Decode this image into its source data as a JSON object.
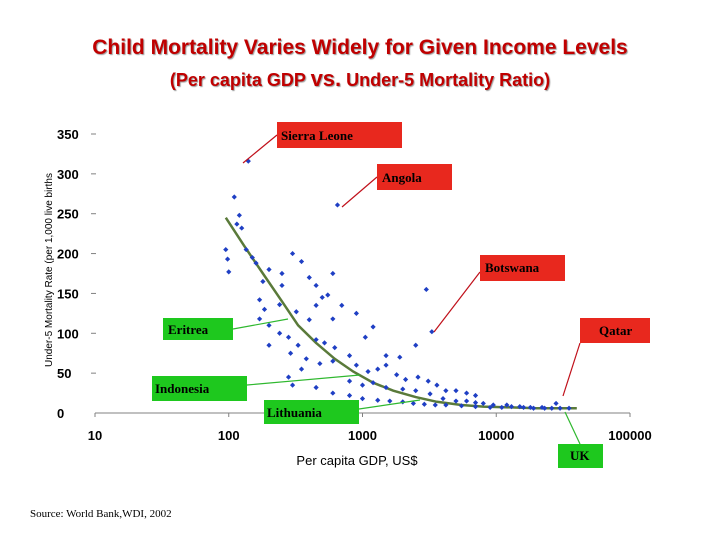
{
  "title": "Child Mortality Varies Widely for Given Income Levels",
  "subtitle_pre": "(Per capita GDP ",
  "subtitle_vs": "vs.",
  "subtitle_post": " Under-5 Mortality Ratio)",
  "source": "Source: World Bank,WDI, 2002",
  "chart_data": {
    "type": "scatter",
    "xscale": "log",
    "xlabel": "Per capita GDP, US$",
    "ylabel": "Under-5 Mortality Rate (per 1,000 live births",
    "xlim": [
      10,
      100000
    ],
    "ylim": [
      0,
      350
    ],
    "xticks": [
      "10",
      "100",
      "1000",
      "10000",
      "100000"
    ],
    "yticks": [
      "0",
      "50",
      "100",
      "150",
      "200",
      "250",
      "300",
      "350"
    ],
    "marker_color": "#1f3fc4",
    "trend_color": "#5a7a3a",
    "points": [
      [
        140,
        316
      ],
      [
        650,
        261
      ],
      [
        110,
        271
      ],
      [
        115,
        237
      ],
      [
        120,
        248
      ],
      [
        125,
        232
      ],
      [
        95,
        205
      ],
      [
        98,
        193
      ],
      [
        100,
        177
      ],
      [
        135,
        205
      ],
      [
        150,
        195
      ],
      [
        160,
        188
      ],
      [
        180,
        165
      ],
      [
        200,
        180
      ],
      [
        250,
        175
      ],
      [
        300,
        200
      ],
      [
        350,
        190
      ],
      [
        400,
        170
      ],
      [
        600,
        175
      ],
      [
        250,
        160
      ],
      [
        450,
        160
      ],
      [
        500,
        145
      ],
      [
        550,
        148
      ],
      [
        700,
        135
      ],
      [
        170,
        142
      ],
      [
        185,
        130
      ],
      [
        240,
        136
      ],
      [
        320,
        127
      ],
      [
        400,
        117
      ],
      [
        450,
        135
      ],
      [
        600,
        118
      ],
      [
        900,
        125
      ],
      [
        1200,
        108
      ],
      [
        3000,
        155
      ],
      [
        3300,
        102
      ],
      [
        95,
        115
      ],
      [
        100,
        110
      ],
      [
        170,
        118
      ],
      [
        200,
        110
      ],
      [
        240,
        100
      ],
      [
        280,
        95
      ],
      [
        330,
        85
      ],
      [
        450,
        92
      ],
      [
        520,
        88
      ],
      [
        620,
        82
      ],
      [
        800,
        72
      ],
      [
        1050,
        95
      ],
      [
        1500,
        72
      ],
      [
        1900,
        70
      ],
      [
        2500,
        85
      ],
      [
        200,
        85
      ],
      [
        290,
        75
      ],
      [
        380,
        68
      ],
      [
        480,
        62
      ],
      [
        600,
        65
      ],
      [
        900,
        60
      ],
      [
        1100,
        52
      ],
      [
        1300,
        55
      ],
      [
        1500,
        60
      ],
      [
        1800,
        48
      ],
      [
        2100,
        42
      ],
      [
        2600,
        45
      ],
      [
        3100,
        40
      ],
      [
        3600,
        35
      ],
      [
        4200,
        28
      ],
      [
        5000,
        28
      ],
      [
        6000,
        25
      ],
      [
        7000,
        22
      ],
      [
        800,
        40
      ],
      [
        1000,
        35
      ],
      [
        1200,
        38
      ],
      [
        1500,
        32
      ],
      [
        2000,
        30
      ],
      [
        2500,
        28
      ],
      [
        3200,
        24
      ],
      [
        4000,
        18
      ],
      [
        5000,
        15
      ],
      [
        6000,
        15
      ],
      [
        7000,
        13
      ],
      [
        8000,
        12
      ],
      [
        9500,
        10
      ],
      [
        12000,
        10
      ],
      [
        15000,
        8
      ],
      [
        18000,
        7
      ],
      [
        22000,
        7
      ],
      [
        26000,
        6
      ],
      [
        30000,
        6
      ],
      [
        35000,
        6
      ],
      [
        600,
        25
      ],
      [
        800,
        22
      ],
      [
        1000,
        18
      ],
      [
        1300,
        16
      ],
      [
        1600,
        15
      ],
      [
        2000,
        14
      ],
      [
        2400,
        12
      ],
      [
        2900,
        11
      ],
      [
        3500,
        10
      ],
      [
        4200,
        10
      ],
      [
        5500,
        9
      ],
      [
        7000,
        8
      ],
      [
        9000,
        7
      ],
      [
        11000,
        7
      ],
      [
        13000,
        8
      ],
      [
        16000,
        7
      ],
      [
        19000,
        6
      ],
      [
        23000,
        6
      ],
      [
        28000,
        12
      ],
      [
        300,
        35
      ],
      [
        450,
        32
      ],
      [
        280,
        45
      ],
      [
        350,
        55
      ]
    ],
    "trend": [
      [
        95,
        245
      ],
      [
        130,
        210
      ],
      [
        180,
        175
      ],
      [
        250,
        140
      ],
      [
        330,
        110
      ],
      [
        450,
        88
      ],
      [
        620,
        68
      ],
      [
        850,
        52
      ],
      [
        1200,
        38
      ],
      [
        1700,
        28
      ],
      [
        2500,
        20
      ],
      [
        3600,
        14
      ],
      [
        5500,
        10
      ],
      [
        8000,
        8
      ],
      [
        13000,
        7
      ],
      [
        20000,
        6
      ],
      [
        30000,
        6
      ],
      [
        40000,
        6
      ]
    ],
    "callouts": [
      {
        "label": "Sierra Leone",
        "color": "#e8281e",
        "kind": "red"
      },
      {
        "label": "Angola",
        "color": "#e8281e",
        "kind": "red"
      },
      {
        "label": "Botswana",
        "color": "#e8281e",
        "kind": "red"
      },
      {
        "label": "Qatar",
        "color": "#e8281e",
        "kind": "red"
      },
      {
        "label": "Eritrea",
        "color": "#1ec81e",
        "kind": "green"
      },
      {
        "label": "Indonesia",
        "color": "#1ec81e",
        "kind": "green"
      },
      {
        "label": "Lithuania",
        "color": "#1ec81e",
        "kind": "green"
      },
      {
        "label": "UK",
        "color": "#1ec81e",
        "kind": "green"
      }
    ]
  }
}
